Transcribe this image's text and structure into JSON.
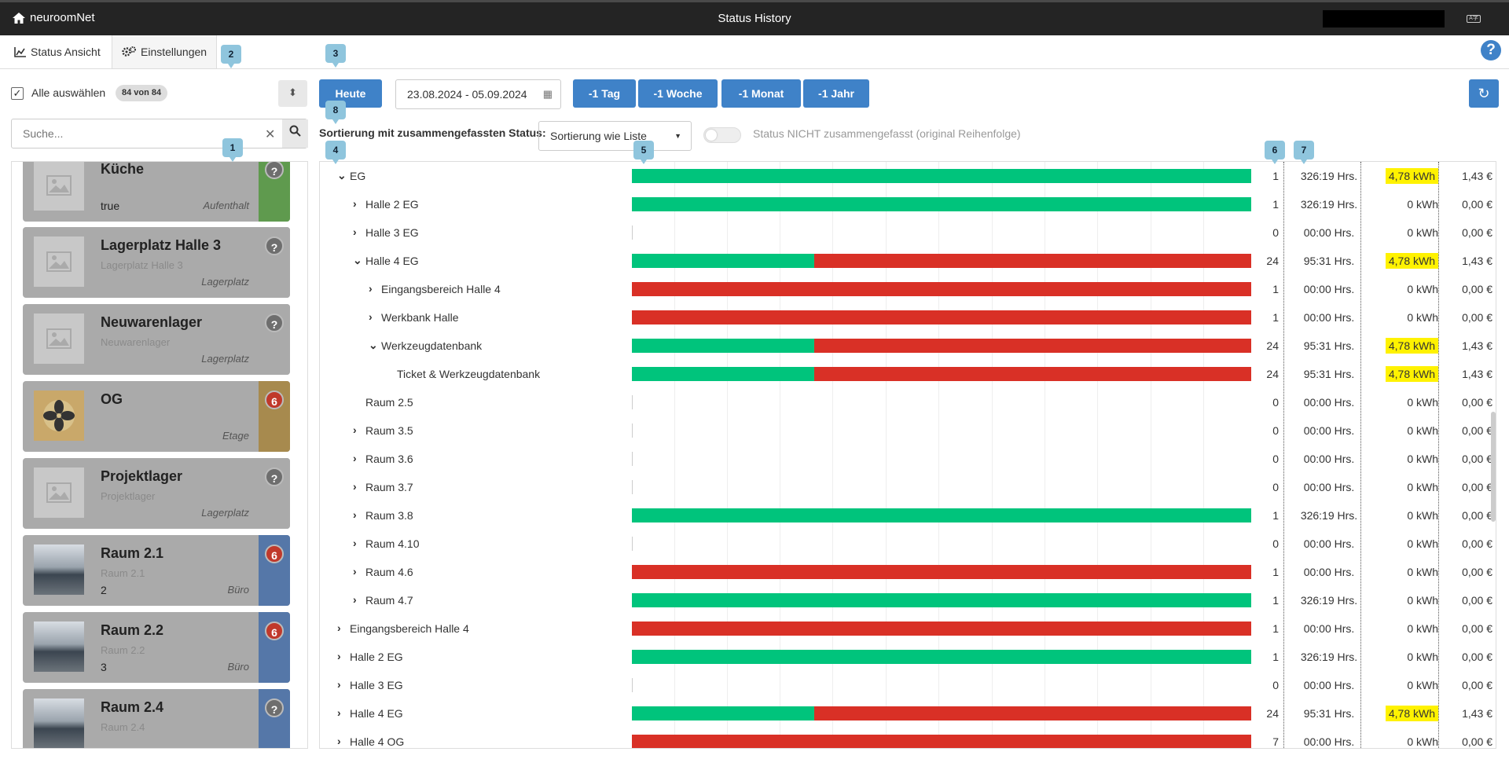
{
  "app": {
    "brand": "neuroomNet",
    "title": "Status History"
  },
  "tabs": [
    {
      "label": "Status Ansicht"
    },
    {
      "label": "Einstellungen"
    }
  ],
  "left": {
    "select_all": "Alle auswählen",
    "count_badge": "84 von 84",
    "search_placeholder": "Suche...",
    "cards": [
      {
        "name": "Küche",
        "sub": "",
        "value": "true",
        "type": "Aufenthalt",
        "badge": "?",
        "side_color": "#5f9a4e",
        "bg": "#aaaaaa",
        "image": "placeholder"
      },
      {
        "name": "Lagerplatz Halle 3",
        "sub": "Lagerplatz Halle 3",
        "value": "",
        "type": "Lagerplatz",
        "badge": "?",
        "side_color": "#aaaaaa",
        "bg": "#aaaaaa",
        "image": "placeholder"
      },
      {
        "name": "Neuwarenlager",
        "sub": "Neuwarenlager",
        "value": "",
        "type": "Lagerplatz",
        "badge": "?",
        "side_color": "#aaaaaa",
        "bg": "#aaaaaa",
        "image": "placeholder"
      },
      {
        "name": "OG",
        "sub": "",
        "value": "",
        "type": "Etage",
        "badge": "6",
        "side_color": "#a78a4e",
        "bg": "#aaaaaa",
        "image": "fan"
      },
      {
        "name": "Projektlager",
        "sub": "Projektlager",
        "value": "",
        "type": "Lagerplatz",
        "badge": "?",
        "side_color": "#aaaaaa",
        "bg": "#aaaaaa",
        "image": "placeholder"
      },
      {
        "name": "Raum 2.1",
        "sub": "Raum 2.1",
        "value": "2",
        "type": "Büro",
        "badge": "6",
        "side_color": "#5577a8",
        "bg": "#aaaaaa",
        "image": "photo"
      },
      {
        "name": "Raum 2.2",
        "sub": "Raum 2.2",
        "value": "3",
        "type": "Büro",
        "badge": "6",
        "side_color": "#5577a8",
        "bg": "#aaaaaa",
        "image": "photo"
      },
      {
        "name": "Raum 2.4",
        "sub": "Raum 2.4",
        "value": "",
        "type": "",
        "badge": "?",
        "side_color": "#5577a8",
        "bg": "#aaaaaa",
        "image": "photo"
      }
    ]
  },
  "toolbar": {
    "today": "Heute",
    "date_range": "23.08.2024 - 05.09.2024",
    "minus_day": "-1 Tag",
    "minus_week": "-1 Woche",
    "minus_month": "-1 Monat",
    "minus_year": "-1 Jahr",
    "sort_label": "Sortierung mit zusammengefassten Status:",
    "sort_value": "Sortierung wie Liste",
    "toggle_label": "Status NICHT zusammengefasst (original Reihenfolge)"
  },
  "markers": [
    "1",
    "2",
    "3",
    "4",
    "5",
    "6",
    "7",
    "8"
  ],
  "rows": [
    {
      "label": "EG",
      "level": 0,
      "arrow": "down",
      "green": 1.0,
      "count": "1",
      "hrs": "326:19 Hrs.",
      "kwh": "4,78 kWh",
      "hl": true,
      "eur": "1,43 €"
    },
    {
      "label": "Halle 2 EG",
      "level": 1,
      "arrow": "right",
      "green": 1.0,
      "count": "1",
      "hrs": "326:19 Hrs.",
      "kwh": "0 kWh",
      "hl": false,
      "eur": "0,00 €"
    },
    {
      "label": "Halle 3 EG",
      "level": 1,
      "arrow": "right",
      "green": 0,
      "red": 0,
      "count": "0",
      "hrs": "00:00 Hrs.",
      "kwh": "0 kWh",
      "hl": false,
      "eur": "0,00 €"
    },
    {
      "label": "Halle 4 EG",
      "level": 1,
      "arrow": "down",
      "green": 0.294,
      "red": 0.706,
      "count": "24",
      "hrs": "95:31 Hrs.",
      "kwh": "4,78 kWh",
      "hl": true,
      "eur": "1,43 €"
    },
    {
      "label": "Eingangsbereich Halle 4",
      "level": 2,
      "arrow": "right",
      "green": 0,
      "red": 1.0,
      "count": "1",
      "hrs": "00:00 Hrs.",
      "kwh": "0 kWh",
      "hl": false,
      "eur": "0,00 €"
    },
    {
      "label": "Werkbank Halle",
      "level": 2,
      "arrow": "right",
      "green": 0,
      "red": 1.0,
      "count": "1",
      "hrs": "00:00 Hrs.",
      "kwh": "0 kWh",
      "hl": false,
      "eur": "0,00 €"
    },
    {
      "label": "Werkzeugdatenbank",
      "level": 2,
      "arrow": "down",
      "green": 0.294,
      "red": 0.706,
      "count": "24",
      "hrs": "95:31 Hrs.",
      "kwh": "4,78 kWh",
      "hl": true,
      "eur": "1,43 €"
    },
    {
      "label": "Ticket & Werkzeugdatenbank",
      "level": 3,
      "arrow": "",
      "green": 0.294,
      "red": 0.706,
      "count": "24",
      "hrs": "95:31 Hrs.",
      "kwh": "4,78 kWh",
      "hl": true,
      "eur": "1,43 €"
    },
    {
      "label": "Raum 2.5",
      "level": 1,
      "arrow": "",
      "green": 0,
      "red": 0,
      "count": "0",
      "hrs": "00:00 Hrs.",
      "kwh": "0 kWh",
      "hl": false,
      "eur": "0,00 €"
    },
    {
      "label": "Raum 3.5",
      "level": 1,
      "arrow": "right",
      "green": 0,
      "red": 0,
      "count": "0",
      "hrs": "00:00 Hrs.",
      "kwh": "0 kWh",
      "hl": false,
      "eur": "0,00 €"
    },
    {
      "label": "Raum 3.6",
      "level": 1,
      "arrow": "right",
      "green": 0,
      "red": 0,
      "count": "0",
      "hrs": "00:00 Hrs.",
      "kwh": "0 kWh",
      "hl": false,
      "eur": "0,00 €"
    },
    {
      "label": "Raum 3.7",
      "level": 1,
      "arrow": "right",
      "green": 0,
      "red": 0,
      "count": "0",
      "hrs": "00:00 Hrs.",
      "kwh": "0 kWh",
      "hl": false,
      "eur": "0,00 €"
    },
    {
      "label": "Raum 3.8",
      "level": 1,
      "arrow": "right",
      "green": 1.0,
      "red": 0,
      "count": "1",
      "hrs": "326:19 Hrs.",
      "kwh": "0 kWh",
      "hl": false,
      "eur": "0,00 €"
    },
    {
      "label": "Raum 4.10",
      "level": 1,
      "arrow": "right",
      "green": 0,
      "red": 0,
      "count": "0",
      "hrs": "00:00 Hrs.",
      "kwh": "0 kWh",
      "hl": false,
      "eur": "0,00 €"
    },
    {
      "label": "Raum 4.6",
      "level": 1,
      "arrow": "right",
      "green": 0,
      "red": 1.0,
      "count": "1",
      "hrs": "00:00 Hrs.",
      "kwh": "0 kWh",
      "hl": false,
      "eur": "0,00 €"
    },
    {
      "label": "Raum 4.7",
      "level": 1,
      "arrow": "right",
      "green": 1.0,
      "red": 0,
      "count": "1",
      "hrs": "326:19 Hrs.",
      "kwh": "0 kWh",
      "hl": false,
      "eur": "0,00 €"
    },
    {
      "label": "Eingangsbereich Halle 4",
      "level": 0,
      "arrow": "right",
      "green": 0,
      "red": 1.0,
      "count": "1",
      "hrs": "00:00 Hrs.",
      "kwh": "0 kWh",
      "hl": false,
      "eur": "0,00 €"
    },
    {
      "label": "Halle 2 EG",
      "level": 0,
      "arrow": "right",
      "green": 1.0,
      "red": 0,
      "count": "1",
      "hrs": "326:19 Hrs.",
      "kwh": "0 kWh",
      "hl": false,
      "eur": "0,00 €"
    },
    {
      "label": "Halle 3 EG",
      "level": 0,
      "arrow": "right",
      "green": 0,
      "red": 0,
      "count": "0",
      "hrs": "00:00 Hrs.",
      "kwh": "0 kWh",
      "hl": false,
      "eur": "0,00 €"
    },
    {
      "label": "Halle 4 EG",
      "level": 0,
      "arrow": "right",
      "green": 0.294,
      "red": 0.706,
      "count": "24",
      "hrs": "95:31 Hrs.",
      "kwh": "4,78 kWh",
      "hl": true,
      "eur": "1,43 €"
    },
    {
      "label": "Halle 4 OG",
      "level": 0,
      "arrow": "right",
      "green": 0,
      "red": 1.0,
      "count": "7",
      "hrs": "00:00 Hrs.",
      "kwh": "0 kWh",
      "hl": false,
      "eur": "0,00 €"
    }
  ],
  "colors": {
    "accent": "#3f82c8",
    "green": "#00c47c",
    "red": "#d93026",
    "highlight": "#fff200"
  }
}
